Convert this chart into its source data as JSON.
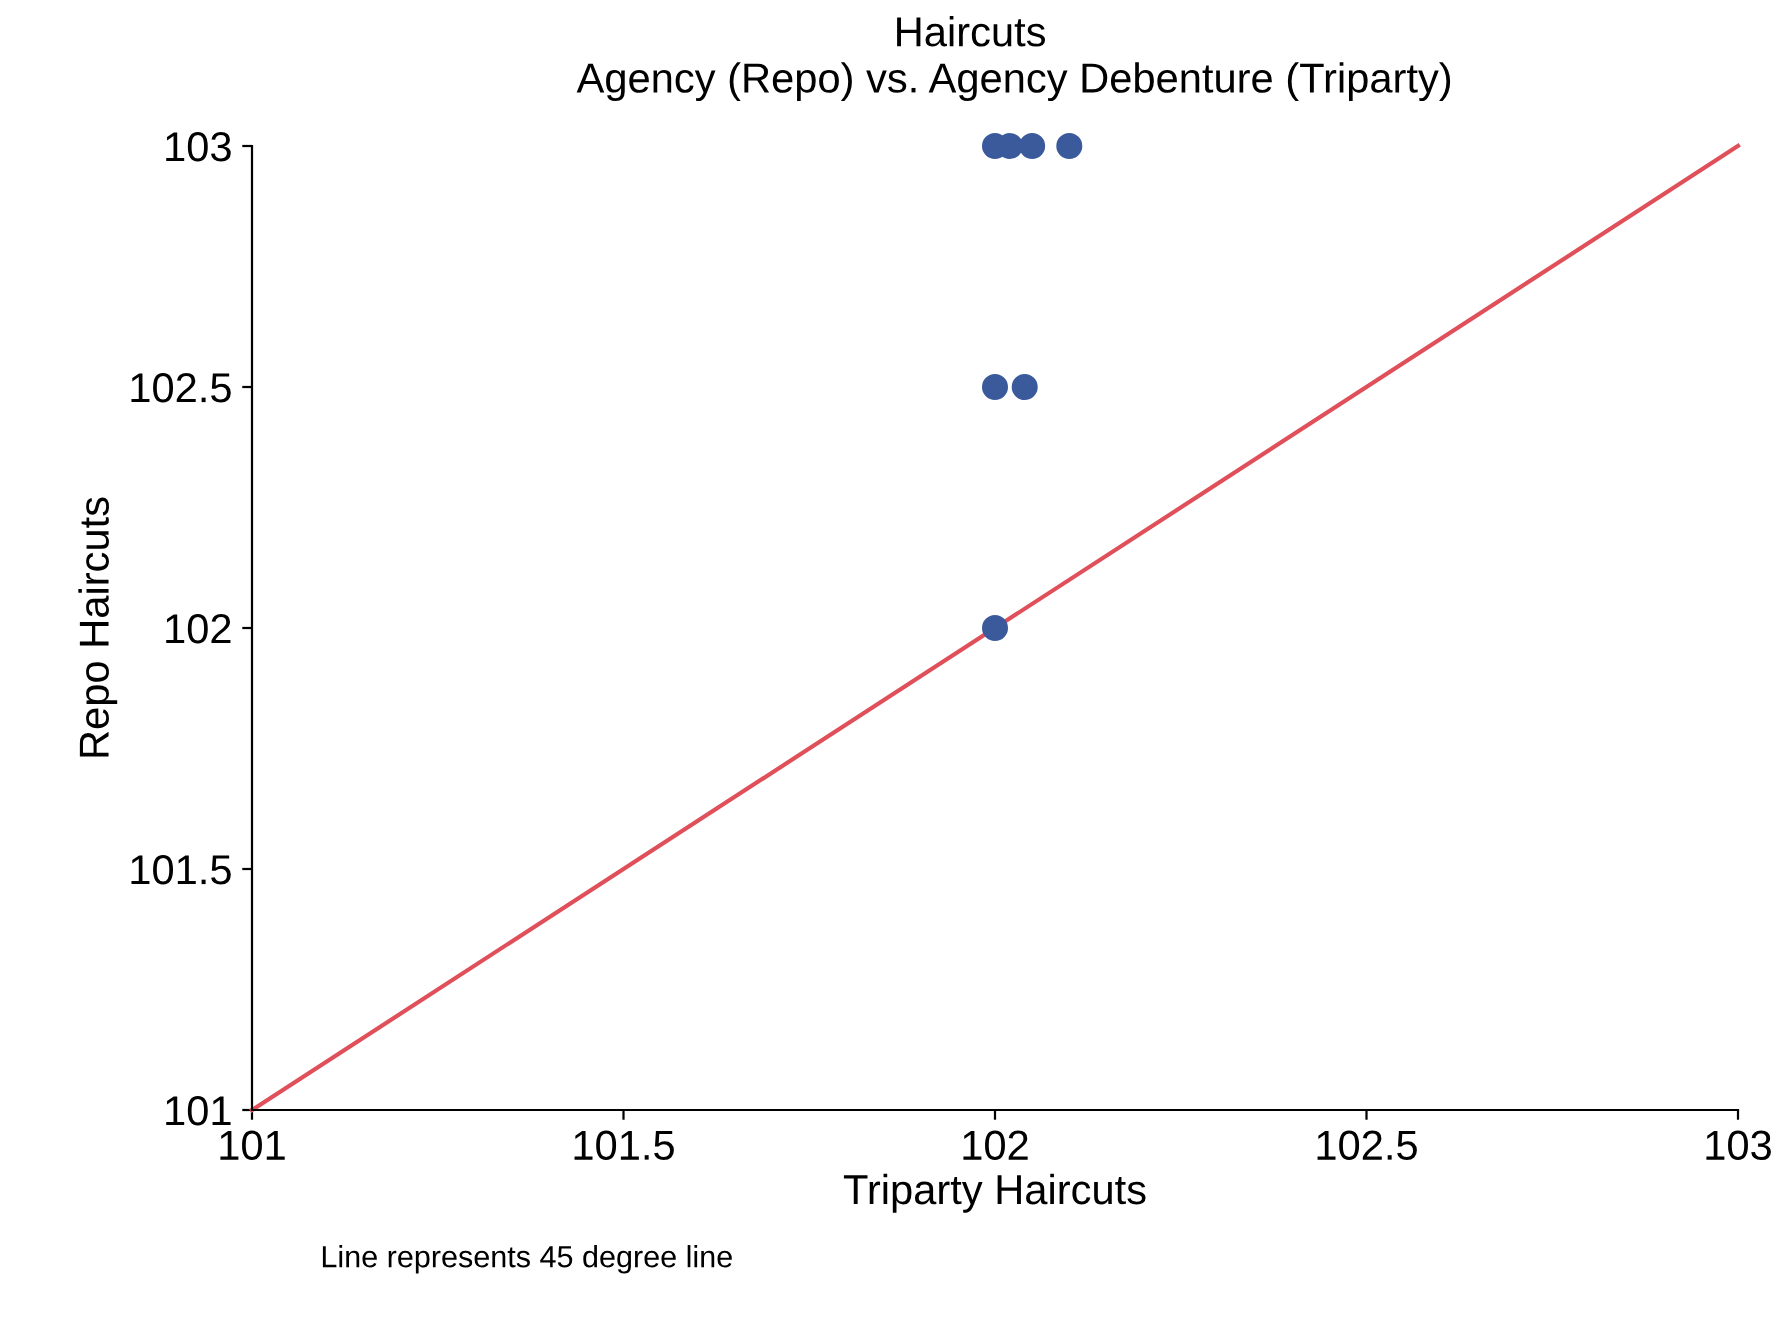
{
  "chart_data": {
    "type": "scatter",
    "title": "Haircuts",
    "subtitle": "Agency (Repo) vs. Agency Debenture (Triparty)",
    "xlabel": "Triparty Haircuts",
    "ylabel": "Repo Haircuts",
    "annotations": [
      "Line represents 45 degree line"
    ],
    "series": [
      {
        "marker": "circle",
        "color": "#3a5a9c",
        "x": [
          102.0,
          102.02,
          102.05,
          102.1,
          102.0,
          102.04,
          102.0
        ],
        "values": [
          103,
          103,
          103,
          103,
          102.5,
          102.5,
          102
        ]
      },
      {
        "type": "line",
        "color": "#e0505a",
        "x": [
          101,
          103
        ],
        "values": [
          101,
          103
        ]
      }
    ],
    "xlim": [
      101,
      103
    ],
    "ylim": [
      101,
      103
    ],
    "xticks": [
      101,
      101.5,
      102,
      102.5,
      103
    ],
    "yticks": [
      101,
      101.5,
      102,
      102.5,
      103
    ],
    "grid": false
  }
}
